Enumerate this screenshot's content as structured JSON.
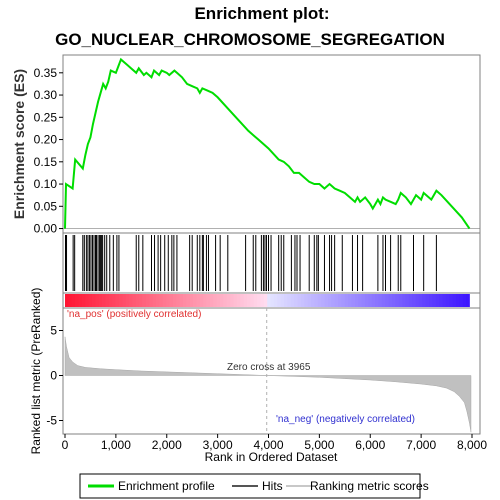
{
  "title_line1": "Enrichment plot:",
  "title_line2": "GO_NUCLEAR_CHROMOSOME_SEGREGATION",
  "colors": {
    "enrichment": "#00dd00",
    "hits": "#000000",
    "metric": "#c0c0c0",
    "pos_text": "#e03030",
    "neg_text": "#3030d0"
  },
  "annotations": {
    "pos": "'na_pos' (positively correlated)",
    "neg": "'na_neg' (negatively correlated)",
    "zero": "Zero cross at 3965"
  },
  "legend": {
    "items": [
      {
        "label": "Enrichment profile",
        "color": "#00dd00",
        "kind": "line"
      },
      {
        "label": "Hits",
        "color": "#555555",
        "kind": "line"
      },
      {
        "label": "Ranking metric scores",
        "color": "#c8c8c8",
        "kind": "line"
      }
    ]
  },
  "chart_data": {
    "type": "line",
    "xlabel": "Rank in Ordered Dataset",
    "xlim": [
      0,
      8000
    ],
    "x_ticks": [
      "0",
      "1,000",
      "2,000",
      "3,000",
      "4,000",
      "5,000",
      "6,000",
      "7,000",
      "8,000"
    ],
    "x_tick_values": [
      0,
      1000,
      2000,
      3000,
      4000,
      5000,
      6000,
      7000,
      8000
    ],
    "zero_cross": 3965,
    "es_panel": {
      "ylabel": "Enrichment score (ES)",
      "ylim": [
        -0.01,
        0.39
      ],
      "y_ticks": [
        "0.00",
        "0.05",
        "0.10",
        "0.15",
        "0.20",
        "0.25",
        "0.30",
        "0.35"
      ],
      "y_tick_values": [
        0.0,
        0.05,
        0.1,
        0.15,
        0.2,
        0.25,
        0.3,
        0.35
      ],
      "series": [
        {
          "x": [
            0,
            20,
            150,
            200,
            350,
            400,
            450,
            500,
            550,
            600,
            650,
            700,
            750,
            800,
            850,
            900,
            1000,
            1050,
            1100,
            1200,
            1300,
            1400,
            1450,
            1550,
            1600,
            1700,
            1750,
            1850,
            1900,
            2000,
            2050,
            2150,
            2200,
            2300,
            2400,
            2500,
            2600,
            2650,
            2700,
            2800,
            2900,
            3000,
            3200,
            3400,
            3600,
            3800,
            4000,
            4200,
            4300,
            4400,
            4500,
            4600,
            4700,
            4800,
            4900,
            5000,
            5100,
            5200,
            5250,
            5300,
            5400,
            5500,
            5600,
            5700,
            5750,
            5800,
            5900,
            6000,
            6050,
            6100,
            6150,
            6200,
            6250,
            6300,
            6400,
            6500,
            6550,
            6600,
            6700,
            6800,
            6900,
            7000,
            7050,
            7100,
            7200,
            7300,
            7400,
            7600,
            7800,
            7950
          ],
          "y": [
            0.0,
            0.1,
            0.09,
            0.155,
            0.135,
            0.165,
            0.19,
            0.205,
            0.235,
            0.26,
            0.285,
            0.305,
            0.325,
            0.315,
            0.33,
            0.355,
            0.35,
            0.365,
            0.38,
            0.37,
            0.36,
            0.35,
            0.36,
            0.345,
            0.35,
            0.34,
            0.355,
            0.345,
            0.355,
            0.35,
            0.345,
            0.355,
            0.35,
            0.34,
            0.325,
            0.32,
            0.315,
            0.305,
            0.315,
            0.31,
            0.305,
            0.295,
            0.27,
            0.245,
            0.22,
            0.2,
            0.18,
            0.155,
            0.15,
            0.14,
            0.125,
            0.125,
            0.115,
            0.105,
            0.1,
            0.1,
            0.09,
            0.1,
            0.095,
            0.09,
            0.085,
            0.08,
            0.07,
            0.06,
            0.07,
            0.06,
            0.07,
            0.055,
            0.045,
            0.055,
            0.065,
            0.055,
            0.07,
            0.065,
            0.06,
            0.055,
            0.065,
            0.08,
            0.07,
            0.055,
            0.075,
            0.065,
            0.08,
            0.075,
            0.065,
            0.085,
            0.075,
            0.05,
            0.025,
            0.0
          ]
        }
      ]
    },
    "hits_panel": {
      "positions": [
        10,
        30,
        160,
        190,
        350,
        380,
        420,
        450,
        480,
        510,
        540,
        570,
        600,
        620,
        650,
        680,
        700,
        720,
        740,
        780,
        820,
        880,
        950,
        1020,
        1060,
        1400,
        1450,
        1530,
        1700,
        1760,
        1830,
        1880,
        1960,
        2030,
        2100,
        2140,
        2200,
        2450,
        2500,
        2600,
        2650,
        2700,
        2720,
        2780,
        2820,
        2960,
        3050,
        3200,
        3550,
        3700,
        3750,
        3860,
        3900,
        3930,
        3960,
        4000,
        4050,
        4200,
        4250,
        4300,
        4450,
        4520,
        4560,
        4620,
        4800,
        4900,
        4950,
        4980,
        5100,
        5200,
        5240,
        5300,
        5450,
        5650,
        5750,
        5850,
        6150,
        6250,
        6300,
        6400,
        6550,
        6600,
        6850,
        7050,
        7300
      ]
    },
    "metric_panel": {
      "ylabel": "Ranked list metric (PreRanked)",
      "ylim": [
        -6.5,
        7.5
      ],
      "y_ticks": [
        "-5",
        "0",
        "5"
      ],
      "y_tick_values": [
        -5,
        0,
        5
      ],
      "x": [
        0,
        30,
        80,
        150,
        250,
        400,
        700,
        1000,
        1500,
        2000,
        2500,
        3000,
        3500,
        3965,
        4500,
        5000,
        5500,
        6000,
        6500,
        7000,
        7300,
        7500,
        7650,
        7750,
        7850,
        7900,
        7950,
        7980
      ],
      "y": [
        4.3,
        3.2,
        2.0,
        1.5,
        1.1,
        0.9,
        0.75,
        0.65,
        0.5,
        0.4,
        0.3,
        0.2,
        0.1,
        0.0,
        -0.1,
        -0.2,
        -0.35,
        -0.5,
        -0.7,
        -0.95,
        -1.15,
        -1.4,
        -1.8,
        -2.3,
        -3.0,
        -4.0,
        -5.3,
        -6.3
      ]
    }
  }
}
